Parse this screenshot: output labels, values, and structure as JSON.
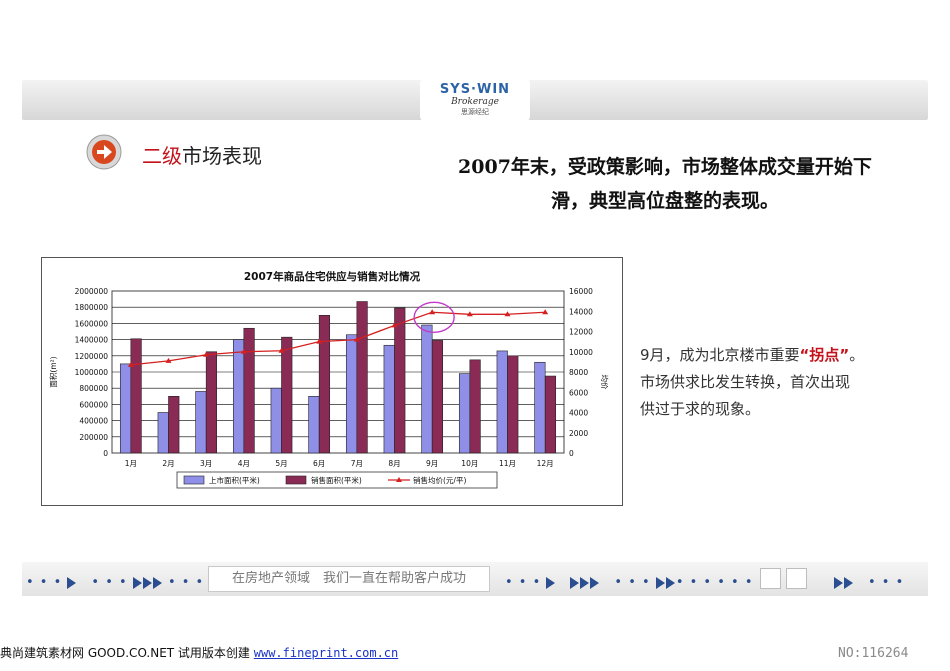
{
  "header": {
    "logo_main": "SYS·WIN",
    "logo_sub": "Brokerage",
    "logo_cn": "思源经纪"
  },
  "section": {
    "title_highlight": "二级",
    "title_rest": "市场表现",
    "icon": "arrow-right-icon"
  },
  "headline": {
    "line1": "2007年末，受政策影响，市场整体成交量开始下",
    "line2": "滑，典型高位盘整的表现。"
  },
  "note": {
    "part1": "9月，成为北京楼市重要",
    "quote": "“拐点”",
    "part2": "。",
    "line2": "市场供求比发生转换，首次出现",
    "line3": "供过于求的现象。"
  },
  "chart_data": {
    "type": "bar",
    "title": "2007年商品住宅供应与销售对比情况",
    "categories": [
      "1月",
      "2月",
      "3月",
      "4月",
      "5月",
      "6月",
      "7月",
      "8月",
      "9月",
      "10月",
      "11月",
      "12月"
    ],
    "ylabel_left": "面积(m²)",
    "ylabel_right": "均价",
    "ylim_left": [
      0,
      2000000
    ],
    "ylim_right": [
      0,
      16000
    ],
    "yticks_left": [
      "0",
      "200000",
      "400000",
      "600000",
      "800000",
      "1000000",
      "1200000",
      "1400000",
      "1600000",
      "1800000",
      "2000000"
    ],
    "yticks_right": [
      "0",
      "2000",
      "4000",
      "6000",
      "8000",
      "10000",
      "12000",
      "14000",
      "16000"
    ],
    "series": [
      {
        "name": "上市面积(平米)",
        "axis": "left",
        "kind": "bar",
        "color": "#8f8fe8",
        "values": [
          1100000,
          500000,
          760000,
          1400000,
          800000,
          700000,
          1460000,
          1330000,
          1580000,
          980000,
          1260000,
          1120000
        ]
      },
      {
        "name": "销售面积(平米)",
        "axis": "left",
        "kind": "bar",
        "color": "#8a2b55",
        "values": [
          1410000,
          700000,
          1250000,
          1540000,
          1430000,
          1700000,
          1870000,
          1790000,
          1390000,
          1150000,
          1200000,
          950000
        ]
      },
      {
        "name": "销售均价(元/平)",
        "axis": "right",
        "kind": "line",
        "color": "#d42020",
        "values": [
          8700,
          9100,
          9700,
          10000,
          10100,
          11000,
          11200,
          12600,
          13900,
          13700,
          13700,
          13900
        ]
      }
    ],
    "legend": "bottom",
    "highlight": "9月"
  },
  "bottom_bar": {
    "tagline": "在房地产领域　我们一直在帮助客户成功"
  },
  "footer": {
    "text": "典尚建筑素材网 GOOD.CO.NET 试用版本创建",
    "link": "www.fineprint.com.cn",
    "id": "NO:116264"
  }
}
